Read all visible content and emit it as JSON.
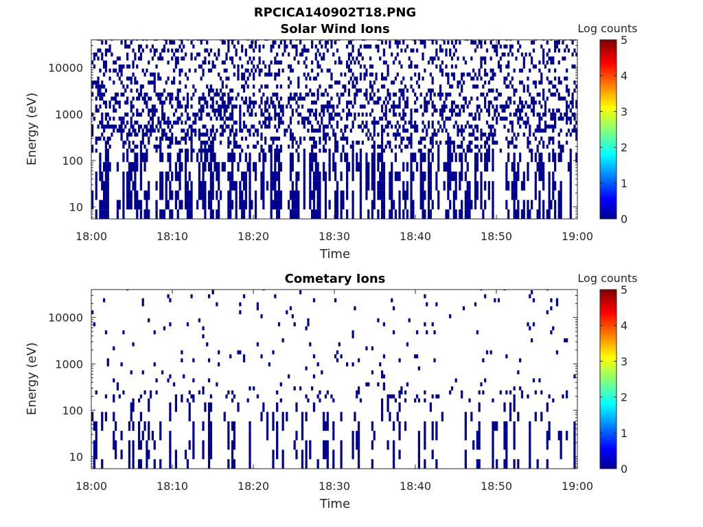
{
  "figure": {
    "filename": "RPCICA140902T18.PNG"
  },
  "chart_data": [
    {
      "type": "heatmap",
      "title": "Solar Wind Ions",
      "xlabel": "Time",
      "ylabel": "Energy (eV)",
      "x_ticks": [
        "18:00",
        "18:10",
        "18:20",
        "18:30",
        "18:40",
        "18:50",
        "19:00"
      ],
      "x_range": [
        "18:00",
        "19:00"
      ],
      "y_scale": "log",
      "y_ticks": [
        "10",
        "100",
        "1000",
        "10000"
      ],
      "y_range": [
        5.5,
        40000
      ],
      "colorbar": {
        "label": "Log counts",
        "range": [
          0,
          5
        ],
        "ticks": [
          "0",
          "1",
          "2",
          "3",
          "4",
          "5"
        ],
        "colormap": "jet"
      },
      "dominant_color": "#00008f",
      "note": "Sparse counts (log counts ~0) distributed across all energies, denser above ~300 eV and in columns at low energy"
    },
    {
      "type": "heatmap",
      "title": "Cometary Ions",
      "xlabel": "Time",
      "ylabel": "Energy (eV)",
      "x_ticks": [
        "18:00",
        "18:10",
        "18:20",
        "18:30",
        "18:40",
        "18:50",
        "19:00"
      ],
      "x_range": [
        "18:00",
        "19:00"
      ],
      "y_scale": "log",
      "y_ticks": [
        "10",
        "100",
        "1000",
        "10000"
      ],
      "y_range": [
        5.5,
        40000
      ],
      "colorbar": {
        "label": "Log counts",
        "range": [
          0,
          5
        ],
        "ticks": [
          "0",
          "1",
          "2",
          "3",
          "4",
          "5"
        ],
        "colormap": "jet"
      },
      "dominant_color": "#00008f",
      "note": "Very sparse counts (log counts ~0), mostly below ~200 eV with scattered points at higher energy"
    }
  ]
}
